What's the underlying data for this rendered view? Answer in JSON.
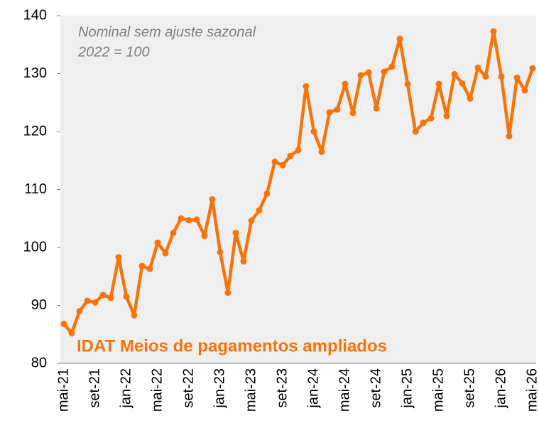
{
  "chart_data": {
    "type": "line",
    "annotations": [
      "Nominal sem ajuste sazonal",
      "2022 = 100"
    ],
    "categories": [
      "mai-21",
      null,
      null,
      null,
      "set-21",
      null,
      null,
      null,
      "jan-22",
      null,
      null,
      null,
      "mai-22",
      null,
      null,
      null,
      "set-22",
      null,
      null,
      null,
      "jan-23",
      null,
      null,
      null,
      "mai-23",
      null,
      null,
      null,
      "set-23",
      null,
      null,
      null,
      "jan-24",
      null,
      null,
      null,
      "mai-24",
      null,
      null,
      null,
      "set-24",
      null,
      null,
      null,
      "jan-25",
      null,
      null,
      null,
      "mai-25",
      null,
      null,
      null,
      "set-25",
      null,
      null,
      null,
      "jan-26",
      null,
      null,
      null,
      "mai-26"
    ],
    "series": [
      {
        "name": "IDAT Meios de pagamentos ampliados",
        "color": "#f7730b",
        "values": [
          86.8,
          85.2,
          89.0,
          90.8,
          90.5,
          91.8,
          91.3,
          98.3,
          91.5,
          88.3,
          96.8,
          96.3,
          100.8,
          99.0,
          102.5,
          105.0,
          104.7,
          104.8,
          102.0,
          108.3,
          99.2,
          92.2,
          102.5,
          97.6,
          104.6,
          106.4,
          109.3,
          114.8,
          114.2,
          115.8,
          116.8,
          127.8,
          120.0,
          116.5,
          123.3,
          123.8,
          128.2,
          123.2,
          129.7,
          130.2,
          124.0,
          130.3,
          131.2,
          136.0,
          128.2,
          120.0,
          121.5,
          122.3,
          128.2,
          122.7,
          129.9,
          128.3,
          125.7,
          131.0,
          129.5,
          137.3,
          129.5,
          119.2,
          129.3,
          127.1,
          130.9
        ]
      }
    ],
    "ylim": [
      80,
      140
    ],
    "yticks": [
      80,
      90,
      100,
      110,
      120,
      130,
      140
    ],
    "grid": false
  }
}
